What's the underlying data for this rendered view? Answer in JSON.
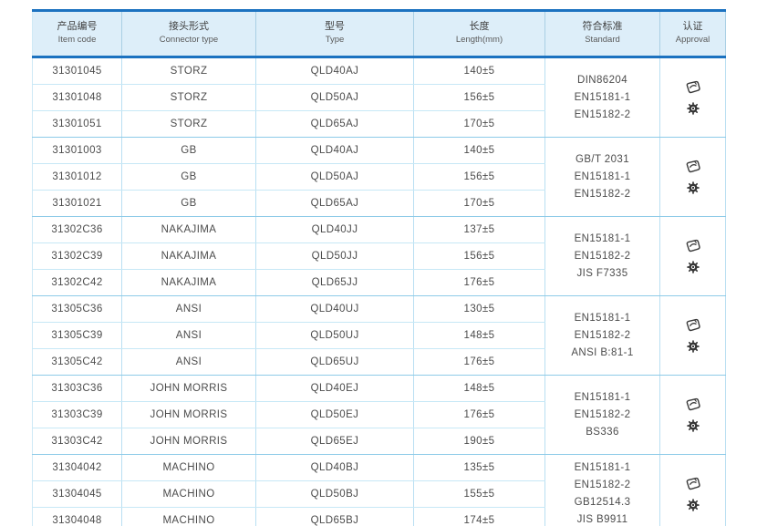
{
  "header": {
    "columns": [
      {
        "zh": "产品编号",
        "en": "Item code"
      },
      {
        "zh": "接头形式",
        "en": "Connector type"
      },
      {
        "zh": "型号",
        "en": "Type"
      },
      {
        "zh": "长度",
        "en": "Length(mm)"
      },
      {
        "zh": "符合标准",
        "en": "Standard"
      },
      {
        "zh": "认证",
        "en": "Approval"
      }
    ]
  },
  "groups": [
    {
      "connector_type": "STORZ",
      "rows": [
        {
          "item_code": "31301045",
          "connector_type": "STORZ",
          "type": "QLD40AJ",
          "length": "140±5"
        },
        {
          "item_code": "31301048",
          "connector_type": "STORZ",
          "type": "QLD50AJ",
          "length": "156±5"
        },
        {
          "item_code": "31301051",
          "connector_type": "STORZ",
          "type": "QLD65AJ",
          "length": "170±5"
        }
      ],
      "standards": [
        "DIN86204",
        "EN15181-1",
        "EN15182-2"
      ],
      "approval_icons": [
        "approval-stamp-icon",
        "wheelmark-gear-icon"
      ]
    },
    {
      "connector_type": "GB",
      "rows": [
        {
          "item_code": "31301003",
          "connector_type": "GB",
          "type": "QLD40AJ",
          "length": "140±5"
        },
        {
          "item_code": "31301012",
          "connector_type": "GB",
          "type": "QLD50AJ",
          "length": "156±5"
        },
        {
          "item_code": "31301021",
          "connector_type": "GB",
          "type": "QLD65AJ",
          "length": "170±5"
        }
      ],
      "standards": [
        "GB/T 2031",
        "EN15181-1",
        "EN15182-2"
      ],
      "approval_icons": [
        "approval-stamp-icon",
        "wheelmark-gear-icon"
      ]
    },
    {
      "connector_type": "NAKAJIMA",
      "rows": [
        {
          "item_code": "31302C36",
          "connector_type": "NAKAJIMA",
          "type": "QLD40JJ",
          "length": "137±5"
        },
        {
          "item_code": "31302C39",
          "connector_type": "NAKAJIMA",
          "type": "QLD50JJ",
          "length": "156±5"
        },
        {
          "item_code": "31302C42",
          "connector_type": "NAKAJIMA",
          "type": "QLD65JJ",
          "length": "176±5"
        }
      ],
      "standards": [
        "EN15181-1",
        "EN15182-2",
        "JIS F7335"
      ],
      "approval_icons": [
        "approval-stamp-icon",
        "wheelmark-gear-icon"
      ]
    },
    {
      "connector_type": "ANSI",
      "rows": [
        {
          "item_code": "31305C36",
          "connector_type": "ANSI",
          "type": "QLD40UJ",
          "length": "130±5"
        },
        {
          "item_code": "31305C39",
          "connector_type": "ANSI",
          "type": "QLD50UJ",
          "length": "148±5"
        },
        {
          "item_code": "31305C42",
          "connector_type": "ANSI",
          "type": "QLD65UJ",
          "length": "176±5"
        }
      ],
      "standards": [
        "EN15181-1",
        "EN15182-2",
        "ANSI B:81-1"
      ],
      "approval_icons": [
        "approval-stamp-icon",
        "wheelmark-gear-icon"
      ]
    },
    {
      "connector_type": "JOHN MORRIS",
      "rows": [
        {
          "item_code": "31303C36",
          "connector_type": "JOHN MORRIS",
          "type": "QLD40EJ",
          "length": "148±5"
        },
        {
          "item_code": "31303C39",
          "connector_type": "JOHN MORRIS",
          "type": "QLD50EJ",
          "length": "176±5"
        },
        {
          "item_code": "31303C42",
          "connector_type": "JOHN MORRIS",
          "type": "QLD65EJ",
          "length": "190±5"
        }
      ],
      "standards": [
        "EN15181-1",
        "EN15182-2",
        "BS336"
      ],
      "approval_icons": [
        "approval-stamp-icon",
        "wheelmark-gear-icon"
      ]
    },
    {
      "connector_type": "MACHINO",
      "rows": [
        {
          "item_code": "31304042",
          "connector_type": "MACHINO",
          "type": "QLD40BJ",
          "length": "135±5"
        },
        {
          "item_code": "31304045",
          "connector_type": "MACHINO",
          "type": "QLD50BJ",
          "length": "155±5"
        },
        {
          "item_code": "31304048",
          "connector_type": "MACHINO",
          "type": "QLD65BJ",
          "length": "174±5"
        }
      ],
      "standards": [
        "EN15181-1",
        "EN15182-2",
        "GB12514.3",
        "JIS B9911"
      ],
      "approval_icons": [
        "approval-stamp-icon",
        "wheelmark-gear-icon"
      ]
    }
  ],
  "colors": {
    "header_background": "#ddeef9",
    "accent_border_blue": "#1c72c0",
    "table_bottom_blue": "#2063b2",
    "row_separator_blue": "#c7e8f6",
    "group_separator_blue": "#8ecbe8",
    "text_gray": "#4c4c4c",
    "icon_dark": "#343434"
  }
}
